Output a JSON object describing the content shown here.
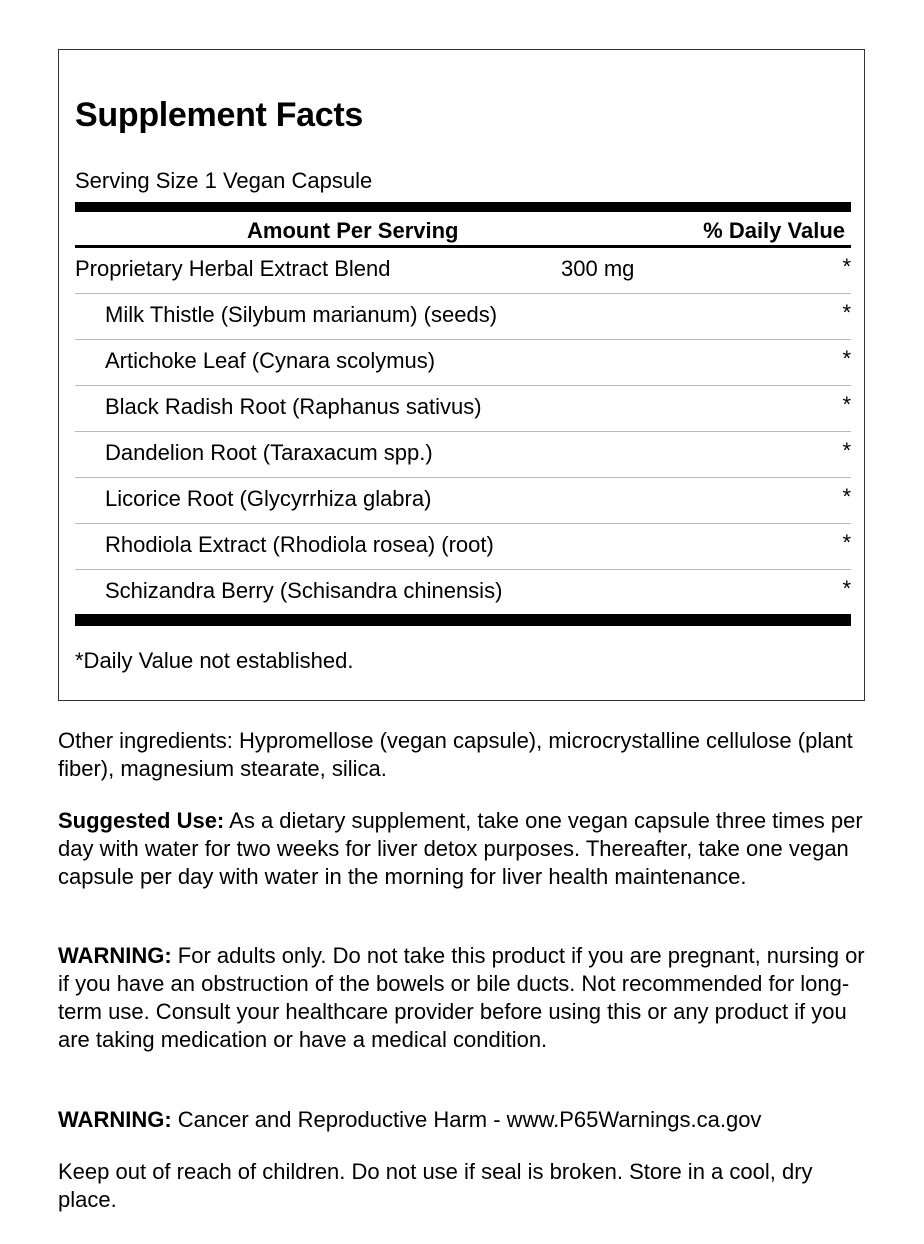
{
  "panel": {
    "title": "Supplement Facts",
    "serving_size": "Serving Size 1 Vegan Capsule",
    "header": {
      "amount": "Amount Per Serving",
      "daily_value": "% Daily Value"
    },
    "rows": [
      {
        "name": "Proprietary Herbal Extract Blend",
        "amount": "300 mg",
        "dv": "*"
      },
      {
        "name": "Milk Thistle (Silybum marianum) (seeds)",
        "amount": "",
        "dv": "*"
      },
      {
        "name": "Artichoke Leaf (Cynara scolymus)",
        "amount": "",
        "dv": "*"
      },
      {
        "name": "Black Radish Root (Raphanus sativus)",
        "amount": "",
        "dv": "*"
      },
      {
        "name": "Dandelion Root (Taraxacum spp.)",
        "amount": "",
        "dv": "*"
      },
      {
        "name": "Licorice Root (Glycyrrhiza glabra)",
        "amount": "",
        "dv": "*"
      },
      {
        "name": "Rhodiola Extract (Rhodiola rosea) (root)",
        "amount": "",
        "dv": "*"
      },
      {
        "name": "Schizandra Berry (Schisandra chinensis)",
        "amount": "",
        "dv": "*"
      }
    ],
    "footnote": "*Daily Value not established."
  },
  "other_ingredients": "Other ingredients: Hypromellose (vegan capsule), microcrystalline cellulose (plant fiber), magnesium stearate, silica.",
  "suggested_use": {
    "label": "Suggested Use:",
    "text": " As a dietary supplement, take one vegan capsule three times per day with water for two weeks for liver detox purposes. Thereafter, take one vegan capsule per day with water in the morning for liver health maintenance."
  },
  "warning1": {
    "label": "WARNING:",
    "text": " For adults only. Do not take this product if you are pregnant, nursing or if you have an obstruction of the bowels or bile ducts. Not recommended for long-term use. Consult your healthcare provider before using this or any product if you are taking medication or have a medical condition."
  },
  "warning2": {
    "label": "WARNING:",
    "text": " Cancer and Reproductive Harm - www.P65Warnings.ca.gov"
  },
  "storage": "Keep out of reach of children. Do not use if seal is broken. Store in a cool, dry place."
}
